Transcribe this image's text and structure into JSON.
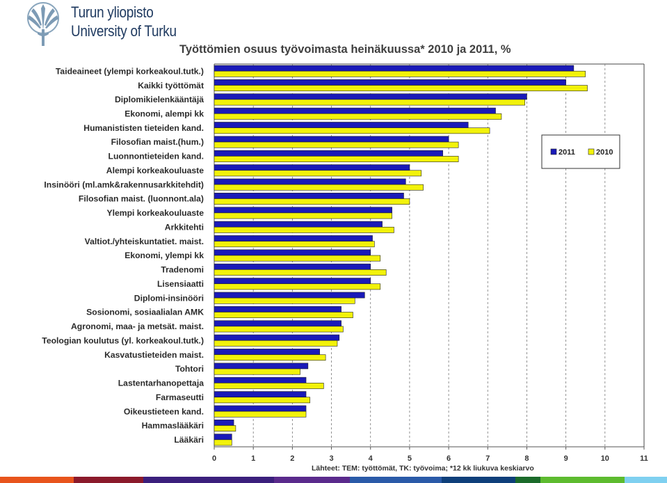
{
  "logo": {
    "line1": "Turun yliopisto",
    "line2": "University of Turku",
    "icon": "torch-emblem-icon",
    "color": "#1f3a60"
  },
  "chart_data": {
    "type": "bar",
    "orientation": "horizontal",
    "title": "Työttömien osuus työvoimasta heinäkuussa* 2010 ja 2011, %",
    "source": "Lähteet: TEM: työttömät, TK: työvoima; *12 kk liukuva keskiarvo",
    "categories": [
      "Taideaineet (ylempi korkeakoul.tutk.)",
      "Kaikki työttömät",
      "Diplomikielenkääntäjä",
      "Ekonomi, alempi kk",
      "Humanististen tieteiden kand.",
      "Filosofian maist.(hum.)",
      "Luonnontieteiden kand.",
      "Alempi korkeakouluaste",
      "Insinööri (ml.amk&rakennusarkkitehdit)",
      "Filosofian maist. (luonnont.ala)",
      "Ylempi korkeakouluaste",
      "Arkkitehti",
      "Valtiot./yhteiskuntatiet. maist.",
      "Ekonomi, ylempi kk",
      "Tradenomi",
      "Lisensiaatti",
      "Diplomi-insinööri",
      "Sosionomi, sosiaalialan AMK",
      "Agronomi, maa- ja metsät. maist.",
      "Teologian koulutus (yl. korkeakoul.tutk.)",
      "Kasvatustieteiden maist.",
      "Tohtori",
      "Lastentarhanopettaja",
      "Farmaseutti",
      "Oikeustieteen kand.",
      "Hammaslääkäri",
      "Lääkäri"
    ],
    "series": [
      {
        "name": "2011",
        "color": "#1a1ab8",
        "values": [
          9.2,
          9.0,
          8.0,
          7.2,
          6.5,
          6.0,
          5.85,
          5.0,
          4.9,
          4.85,
          4.55,
          4.3,
          4.05,
          4.0,
          4.0,
          4.0,
          3.85,
          3.25,
          3.25,
          3.2,
          2.7,
          2.4,
          2.35,
          2.35,
          2.35,
          0.5,
          0.45
        ]
      },
      {
        "name": "2010",
        "color": "#f2f20a",
        "values": [
          9.5,
          9.55,
          7.95,
          7.35,
          7.05,
          6.25,
          6.25,
          5.3,
          5.35,
          5.0,
          4.55,
          4.6,
          4.1,
          4.25,
          4.4,
          4.25,
          3.6,
          3.55,
          3.3,
          3.15,
          2.85,
          2.2,
          2.8,
          2.45,
          2.35,
          0.55,
          0.45
        ]
      }
    ],
    "xlim": [
      0,
      11
    ],
    "xticks": [
      "0",
      "1",
      "2",
      "3",
      "4",
      "5",
      "6",
      "7",
      "8",
      "9",
      "10",
      "11"
    ],
    "grid": "vertical dashed",
    "legend": "right"
  },
  "footer": {
    "colors": [
      "#e8541c",
      "#8b1a2b",
      "#3b1f7c",
      "#5a2a8c",
      "#2a5aa8",
      "#0e3f7a",
      "#1b6b2a",
      "#5dbb2f",
      "#7fd0f0"
    ]
  }
}
